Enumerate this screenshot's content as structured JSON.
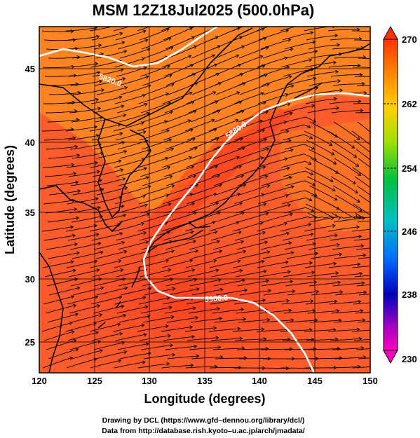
{
  "title": "MSM 12Z18Jul2025 (500.0hPa)",
  "xlabel": "Longitude (degrees)",
  "ylabel": "Latitude  (degrees)",
  "x_ticks": [
    "120",
    "125",
    "130",
    "135",
    "140",
    "145",
    "150"
  ],
  "y_ticks": [
    "25",
    "30",
    "35",
    "40",
    "45"
  ],
  "colorbar": {
    "ticks": [
      "270",
      "262",
      "254",
      "246",
      "238",
      "230"
    ],
    "min": 230,
    "max": 270
  },
  "contours": [
    {
      "value": "5820.0"
    },
    {
      "value": "5880.0"
    },
    {
      "value": "5900.0"
    }
  ],
  "credits": {
    "line1": "Drawing by DCL (https://www.gfd–dennou.org/library/dcl/)",
    "line2": "Data from http://database.rish.kyoto–u.ac.jp/arch/jmadata/"
  },
  "colors": {
    "background_warm": "#ff5a2a",
    "background_cool": "#ff8c22",
    "contour": "#ffffff",
    "coastline": "#000000"
  }
}
